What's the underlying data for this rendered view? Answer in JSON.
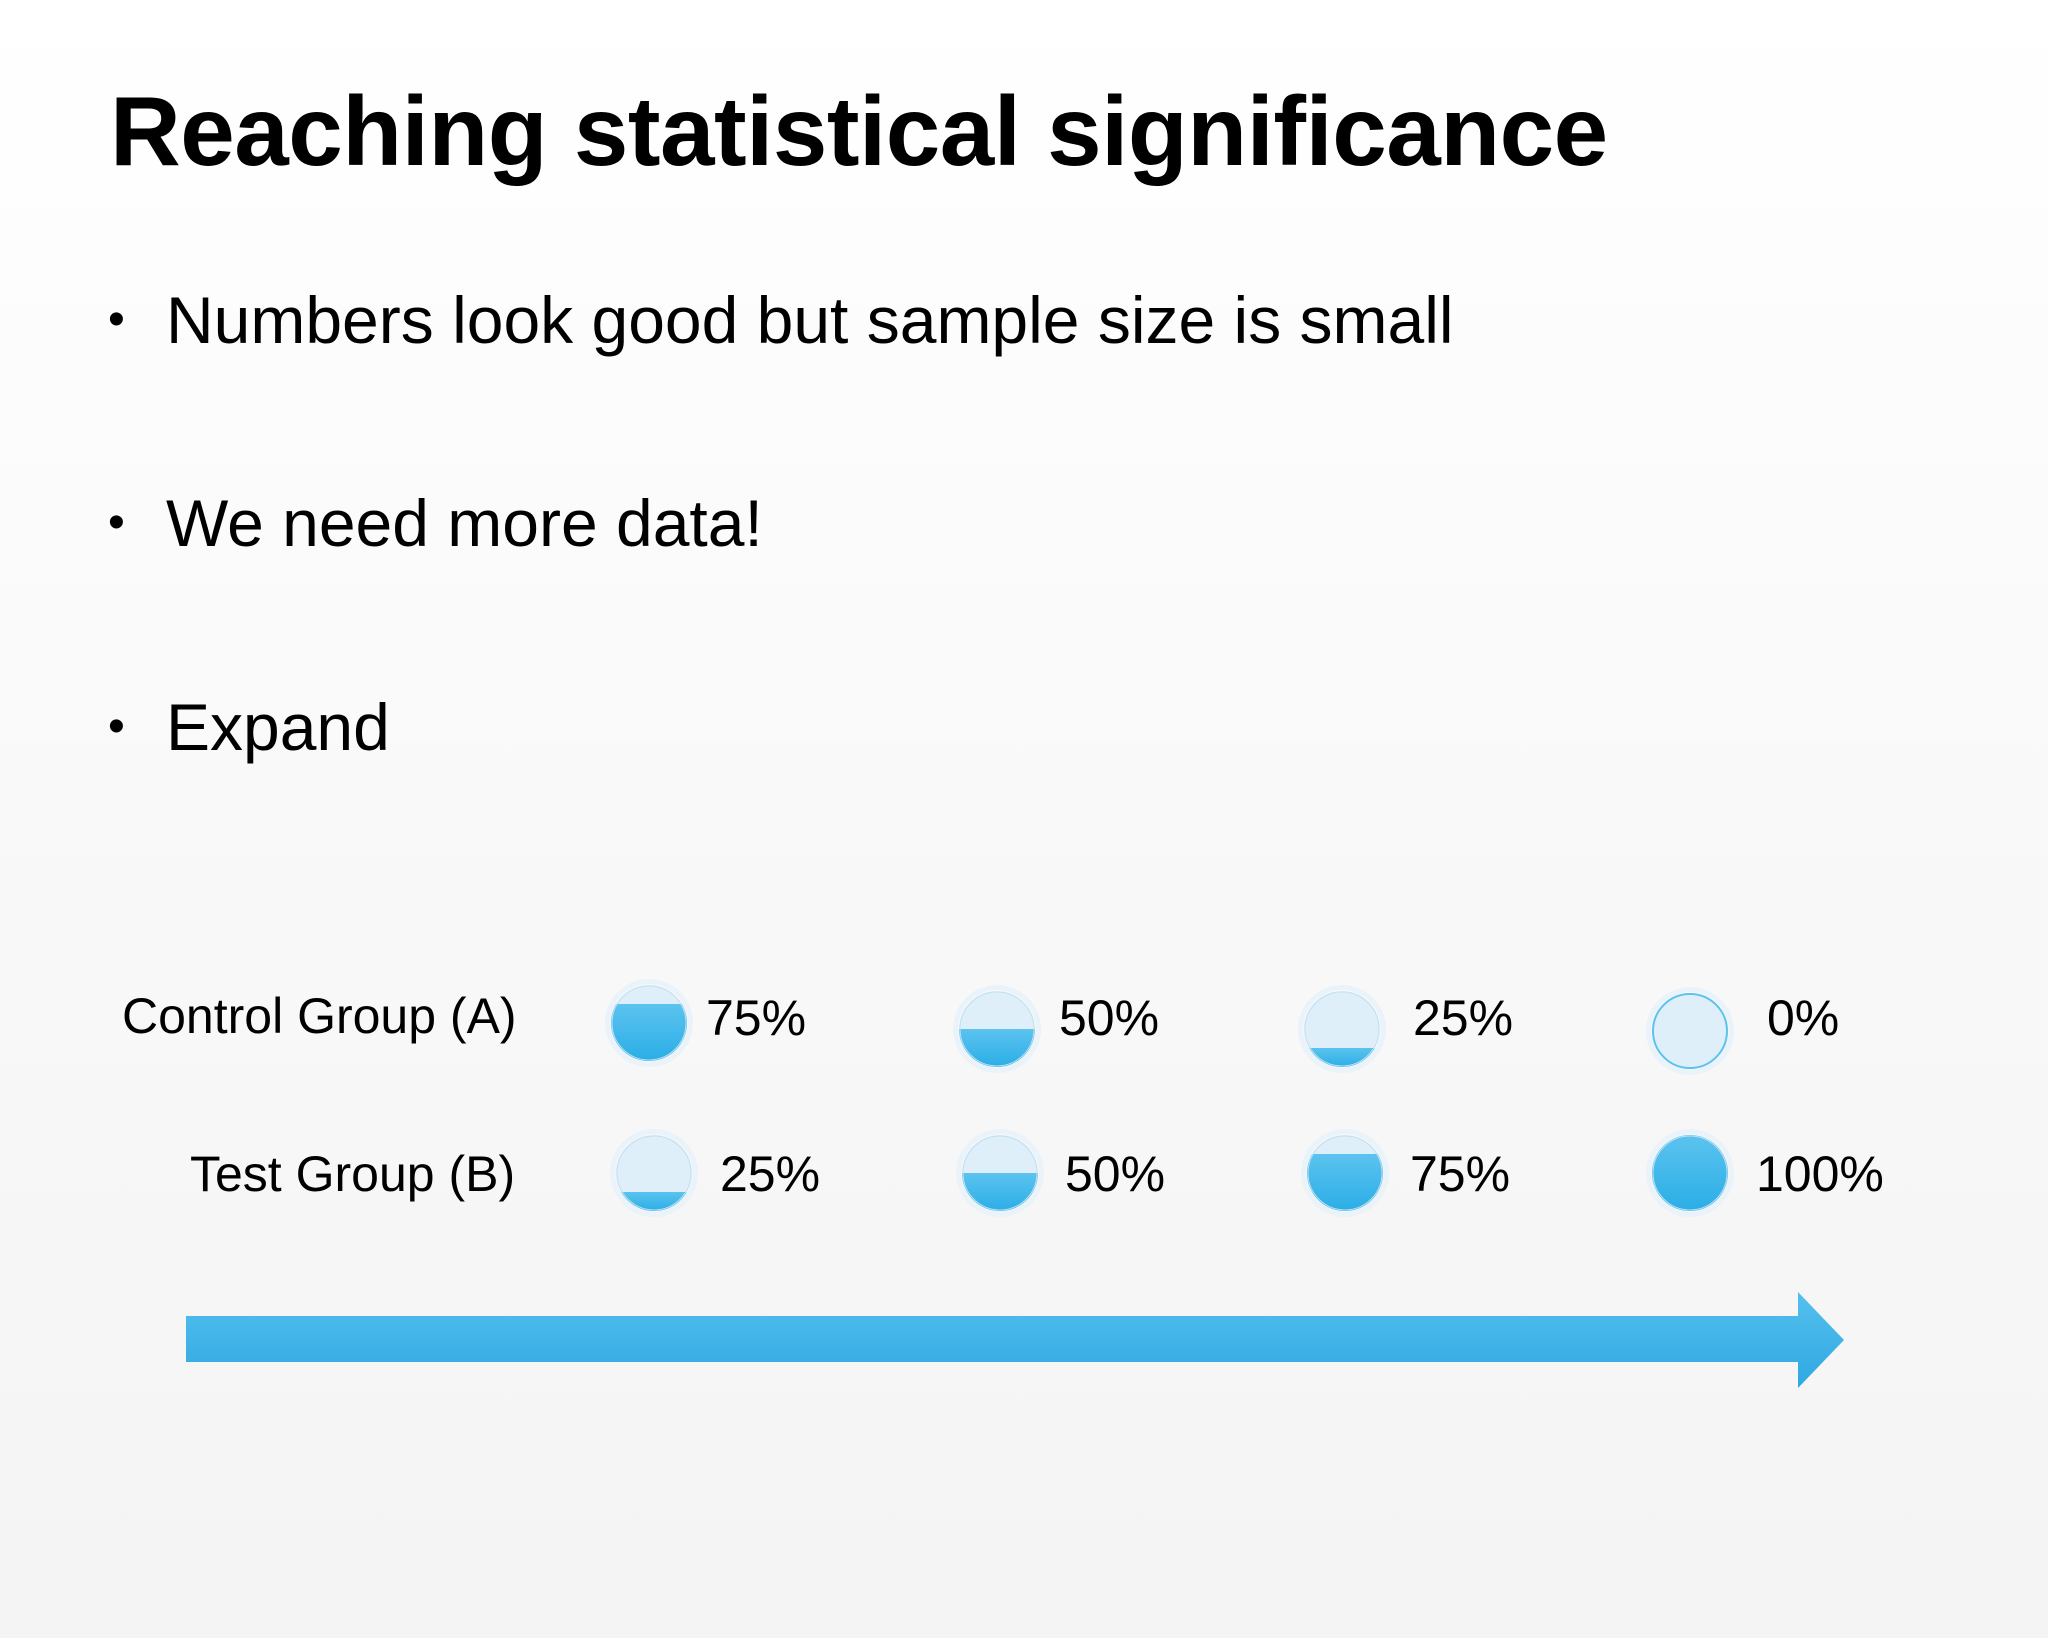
{
  "slide": {
    "title": "Reaching statistical significance",
    "bullets": [
      "Numbers look good but sample size is small",
      "We need more data!",
      "Expand"
    ],
    "bullet_symbol": "•"
  },
  "groups": [
    {
      "label": "Control Group (A)",
      "steps": [
        {
          "fill": 0.75,
          "label": "75%"
        },
        {
          "fill": 0.5,
          "label": "50%"
        },
        {
          "fill": 0.25,
          "label": "25%"
        },
        {
          "fill": 0.0,
          "label": "0%"
        }
      ]
    },
    {
      "label": "Test Group (B)",
      "steps": [
        {
          "fill": 0.25,
          "label": "25%"
        },
        {
          "fill": 0.5,
          "label": "50%"
        },
        {
          "fill": 0.75,
          "label": "75%"
        },
        {
          "fill": 1.0,
          "label": "100%"
        }
      ]
    }
  ],
  "colors": {
    "fill_blue": "#2aaee6",
    "fill_blue_light": "#5cc3ef",
    "empty_blue": "#dfeff9",
    "ring": "#bfe1f3",
    "arrow_blue": "#35b0e8"
  },
  "icons": {
    "gauge": "progress-circle-icon",
    "arrow": "right-arrow-icon"
  }
}
